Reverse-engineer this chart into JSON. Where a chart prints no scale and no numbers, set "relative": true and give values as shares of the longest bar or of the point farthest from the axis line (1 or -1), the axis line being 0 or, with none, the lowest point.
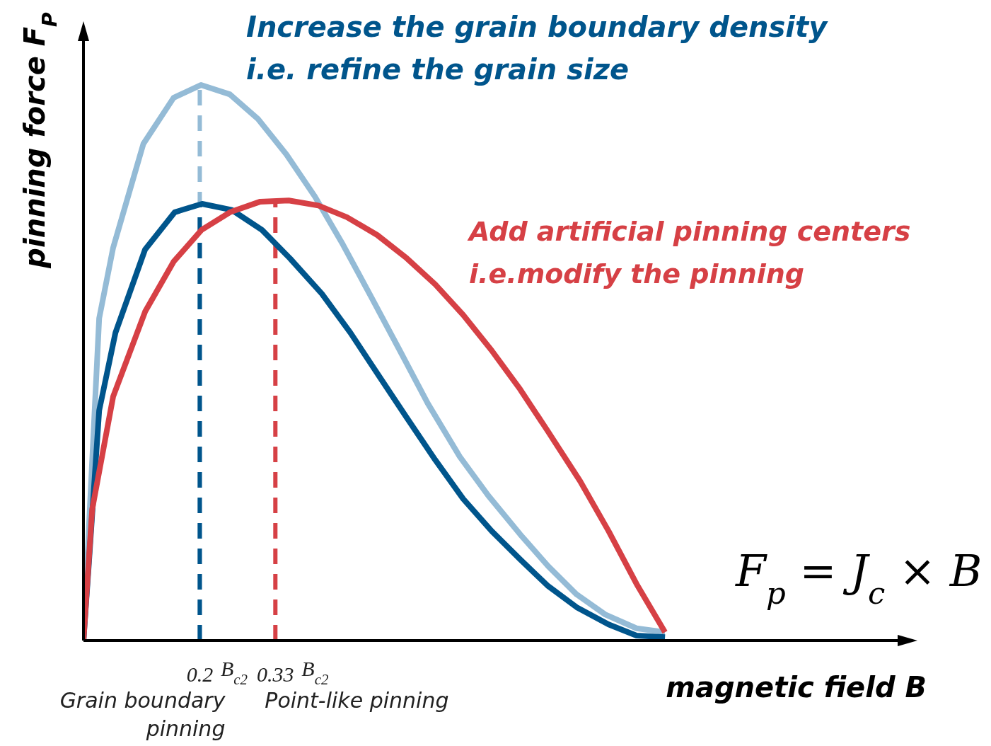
{
  "chart_data": {
    "type": "line",
    "relative": true,
    "xlabel": "magnetic field B",
    "ylabel": "pinning force F$_{P}$",
    "xlim": [
      0,
      1.4
    ],
    "xticks": [
      0.2,
      0.33
    ],
    "grid": false,
    "legend": false,
    "marker": "none",
    "line_style": "solid",
    "series": [
      {
        "color": "#94bbd6",
        "x": [
          0,
          0.012,
          0.027,
          0.051,
          0.103,
          0.155,
          0.202,
          0.252,
          0.3,
          0.349,
          0.398,
          0.446,
          0.495,
          0.544,
          0.592,
          0.647,
          0.696,
          0.751,
          0.799,
          0.848,
          0.897,
          0.951,
          1
        ],
        "values": [
          0,
          0.26,
          0.58,
          0.707,
          0.894,
          0.977,
          1,
          0.983,
          0.939,
          0.875,
          0.799,
          0.713,
          0.618,
          0.522,
          0.427,
          0.331,
          0.261,
          0.191,
          0.134,
          0.083,
          0.047,
          0.022,
          0.015
        ]
      },
      {
        "color": "#00558c",
        "x": [
          0,
          0.009,
          0.027,
          0.055,
          0.106,
          0.157,
          0.204,
          0.255,
          0.307,
          0.355,
          0.41,
          0.459,
          0.507,
          0.556,
          0.605,
          0.653,
          0.702,
          0.751,
          0.799,
          0.848,
          0.903,
          0.951,
          1
        ],
        "values": [
          0,
          0.134,
          0.414,
          0.554,
          0.704,
          0.771,
          0.786,
          0.775,
          0.739,
          0.688,
          0.624,
          0.554,
          0.478,
          0.401,
          0.325,
          0.255,
          0.197,
          0.146,
          0.098,
          0.06,
          0.029,
          0.009,
          0.006
        ]
      },
      {
        "color": "#d64045",
        "x": [
          0,
          0.015,
          0.051,
          0.106,
          0.155,
          0.203,
          0.252,
          0.304,
          0.353,
          0.404,
          0.453,
          0.505,
          0.556,
          0.605,
          0.653,
          0.702,
          0.751,
          0.799,
          0.854,
          0.903,
          0.951,
          1
        ],
        "values": [
          0,
          0.236,
          0.439,
          0.592,
          0.682,
          0.739,
          0.771,
          0.79,
          0.792,
          0.783,
          0.762,
          0.73,
          0.688,
          0.641,
          0.586,
          0.522,
          0.452,
          0.376,
          0.287,
          0.197,
          0.102,
          0.015
        ]
      }
    ],
    "ref_lines": [
      {
        "axis": "x",
        "value": 0.2,
        "color": "#94bbd6",
        "line_style": "dashed"
      },
      {
        "axis": "x",
        "value": 0.2,
        "label": "Grain boundary pinning",
        "color": "#00558c",
        "line_style": "dashed"
      },
      {
        "axis": "x",
        "value": 0.33,
        "label": "Point-like pinning",
        "color": "#d64045",
        "line_style": "dashed"
      }
    ],
    "annotations": [
      "Increase the grain boundary density",
      "i.e. refine the grain size",
      "Add artificial pinning centers",
      "i.e.modify the pinning",
      "F$_{p}$ = J$_{c}$ × B",
      {
        "text": "B$_{c2}$",
        "x": 0.2,
        "y": 0
      },
      {
        "text": "B$_{c2}$",
        "x": 0.33,
        "y": 0
      }
    ]
  }
}
